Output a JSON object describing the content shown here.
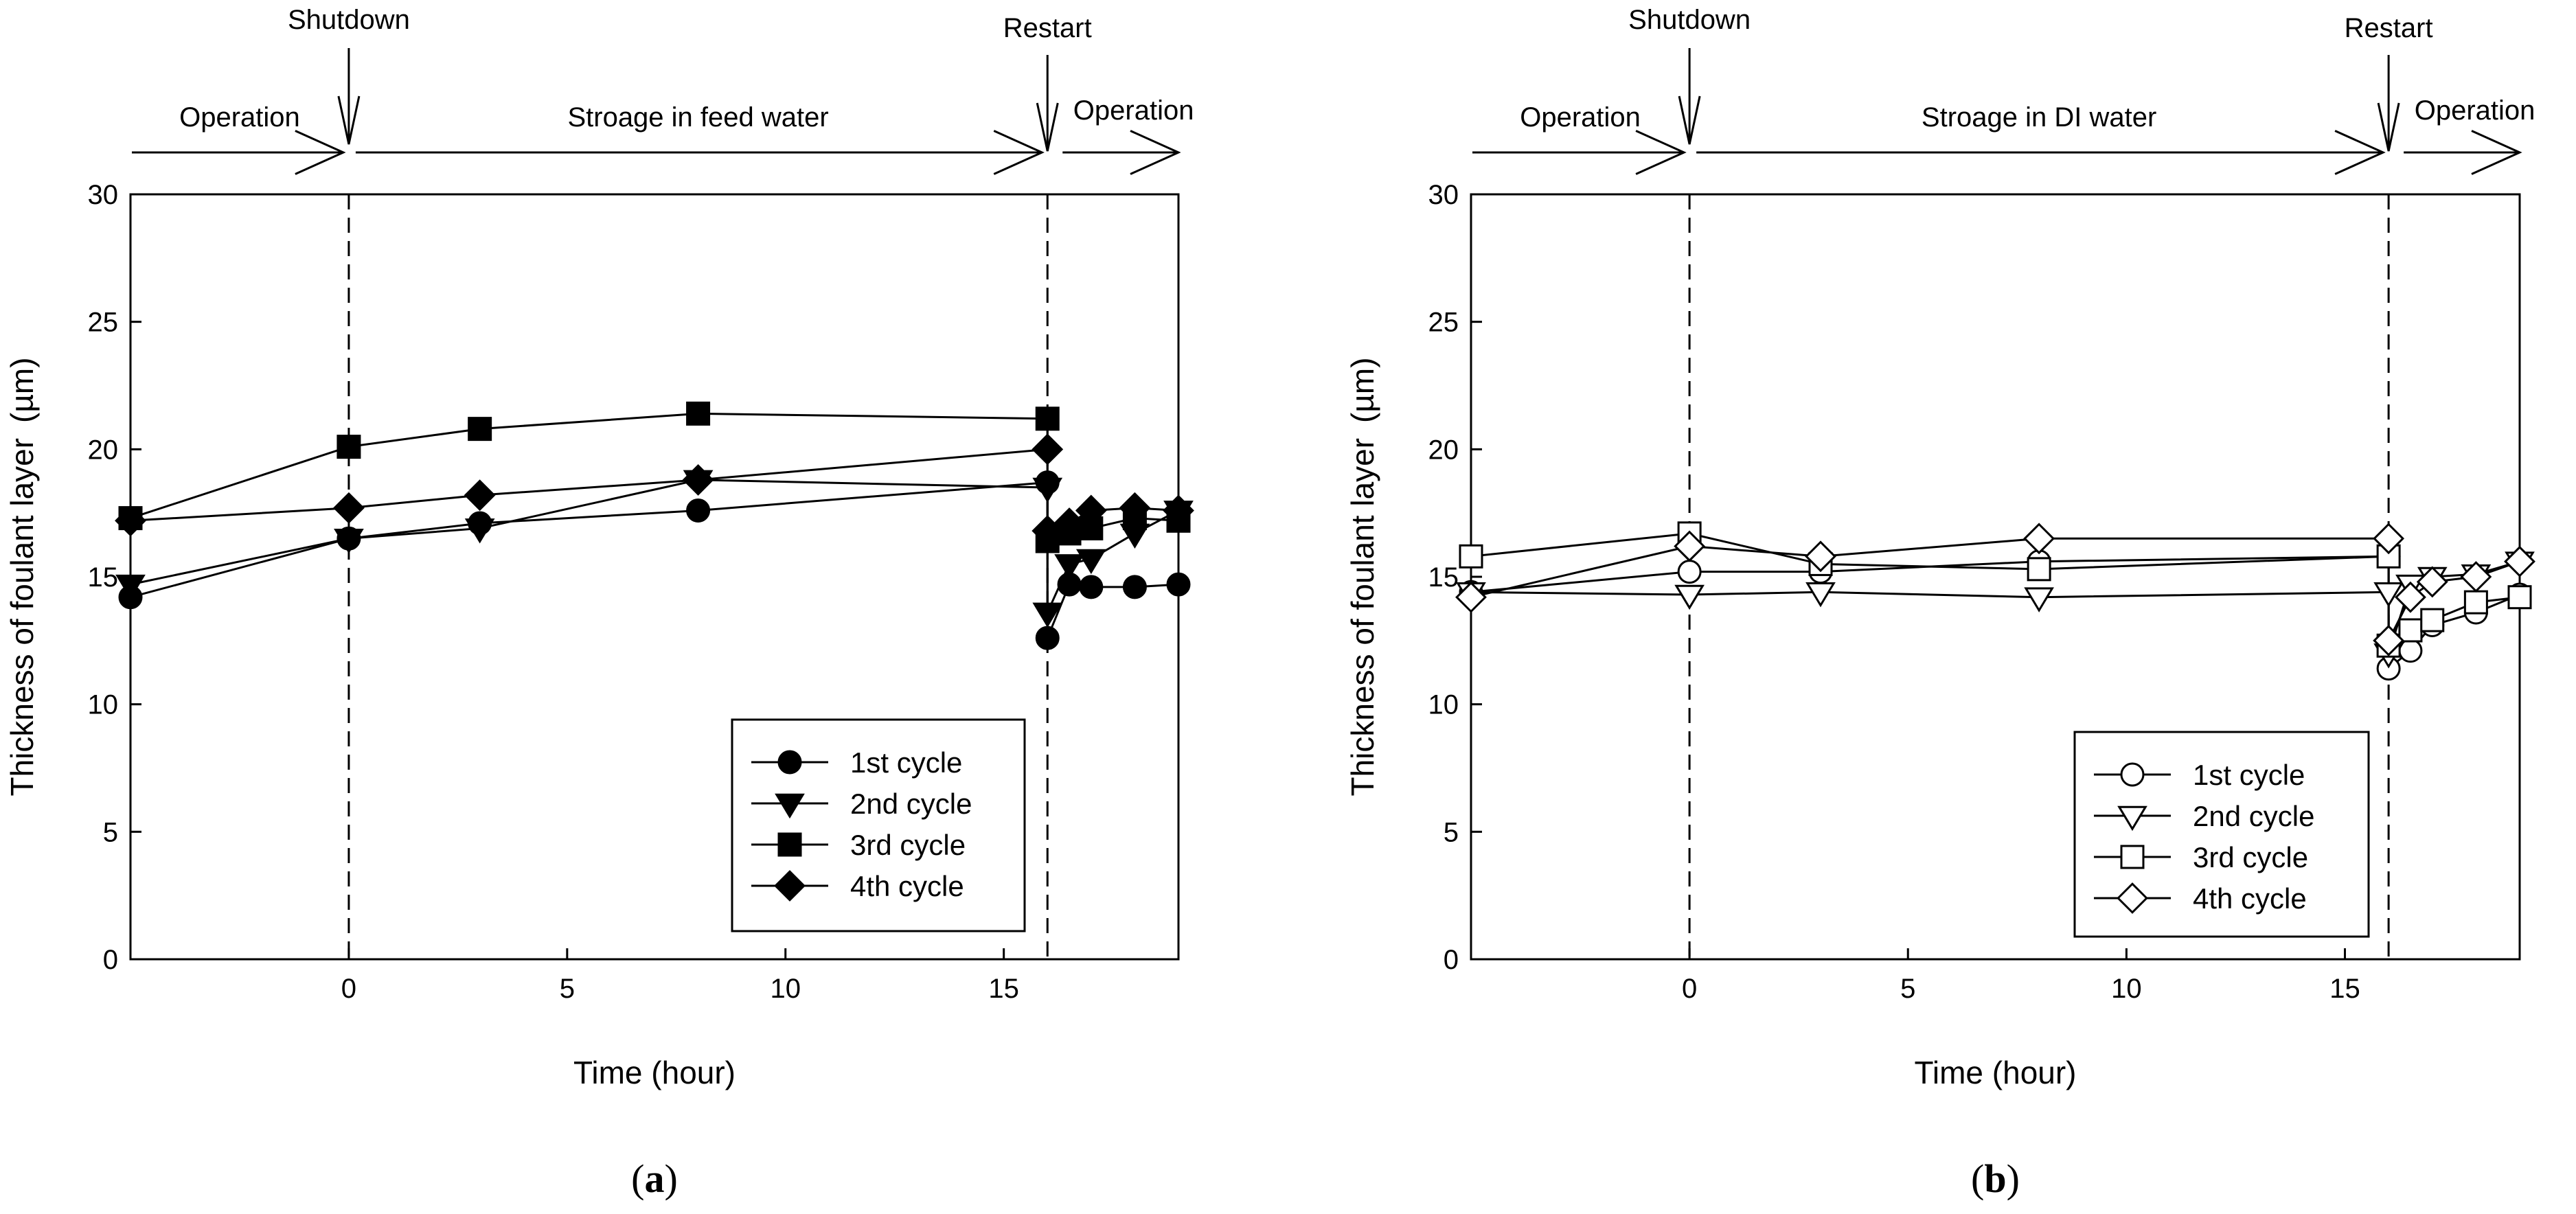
{
  "colors": {
    "ink": "#000000",
    "background": "#ffffff",
    "open_marker_fill": "#ffffff"
  },
  "chart_data": [
    {
      "id": "a",
      "type": "line",
      "caption_letter": "a",
      "caption_open": "(",
      "caption_close": ")",
      "xlabel": "Time (hour)",
      "ylabel": "Thickness of foulant layer",
      "ylabel_unit": "(µm)",
      "xlim": [
        -5,
        19
      ],
      "ylim": [
        0,
        30
      ],
      "xticks": [
        0,
        5,
        10,
        15
      ],
      "yticks": [
        0,
        5,
        10,
        15,
        20,
        25,
        30
      ],
      "grid": false,
      "legend_position": "lower-right",
      "marker_style": "filled",
      "events": {
        "shutdown": {
          "label": "Shutdown",
          "x": 0
        },
        "restart": {
          "label": "Restart",
          "x": 16
        }
      },
      "phases": [
        "Operation",
        "Stroage in feed water",
        "Operation"
      ],
      "series": [
        {
          "name": "1st cycle",
          "marker": "circle",
          "x": [
            -5,
            0,
            3,
            8,
            16,
            16,
            16.5,
            17,
            18,
            19
          ],
          "y": [
            14.2,
            16.5,
            17.1,
            17.6,
            18.7,
            12.6,
            14.7,
            14.6,
            14.6,
            14.7
          ]
        },
        {
          "name": "2nd cycle",
          "marker": "triangle-down",
          "x": [
            -5,
            0,
            3,
            8,
            16,
            16,
            16.5,
            17,
            18,
            19
          ],
          "y": [
            14.7,
            16.5,
            16.9,
            18.8,
            18.5,
            13.6,
            15.5,
            15.7,
            16.7,
            17.6
          ]
        },
        {
          "name": "3rd cycle",
          "marker": "square",
          "x": [
            -5,
            0,
            3,
            8,
            16,
            16,
            16.5,
            17,
            18,
            19
          ],
          "y": [
            17.3,
            20.1,
            20.8,
            21.4,
            21.2,
            16.4,
            16.7,
            16.9,
            17.3,
            17.2
          ]
        },
        {
          "name": "4th cycle",
          "marker": "diamond",
          "x": [
            -5,
            0,
            3,
            8,
            16,
            16,
            16.5,
            17,
            18,
            19
          ],
          "y": [
            17.2,
            17.7,
            18.2,
            18.8,
            20.0,
            16.8,
            17.1,
            17.6,
            17.7,
            17.6
          ]
        }
      ]
    },
    {
      "id": "b",
      "type": "line",
      "caption_letter": "b",
      "caption_open": "(",
      "caption_close": ")",
      "xlabel": "Time (hour)",
      "ylabel": "Thickness of foulant layer",
      "ylabel_unit": "(µm)",
      "xlim": [
        -5,
        19
      ],
      "ylim": [
        0,
        30
      ],
      "xticks": [
        0,
        5,
        10,
        15
      ],
      "yticks": [
        0,
        5,
        10,
        15,
        20,
        25,
        30
      ],
      "grid": false,
      "legend_position": "lower-right",
      "marker_style": "open",
      "events": {
        "shutdown": {
          "label": "Shutdown",
          "x": 0
        },
        "restart": {
          "label": "Restart",
          "x": 16
        }
      },
      "phases": [
        "Operation",
        "Stroage in DI water",
        "Operation"
      ],
      "series": [
        {
          "name": "1st cycle",
          "marker": "circle",
          "x": [
            -5,
            0,
            3,
            8,
            16,
            16,
            16.5,
            17,
            18,
            19
          ],
          "y": [
            14.4,
            15.2,
            15.2,
            15.6,
            15.8,
            11.4,
            12.1,
            13.1,
            13.6,
            14.3
          ]
        },
        {
          "name": "2nd cycle",
          "marker": "triangle-down",
          "x": [
            -5,
            0,
            3,
            8,
            16,
            16,
            16.5,
            17,
            18,
            19
          ],
          "y": [
            14.4,
            14.3,
            14.4,
            14.2,
            14.4,
            12.0,
            14.7,
            15.0,
            15.1,
            15.6
          ]
        },
        {
          "name": "3rd cycle",
          "marker": "square",
          "x": [
            -5,
            0,
            3,
            8,
            16,
            16,
            16.5,
            17,
            18,
            19
          ],
          "y": [
            15.8,
            16.7,
            15.5,
            15.3,
            15.8,
            12.3,
            12.9,
            13.3,
            14.0,
            14.2
          ]
        },
        {
          "name": "4th cycle",
          "marker": "diamond",
          "x": [
            -5,
            0,
            3,
            8,
            16,
            16,
            16.5,
            17,
            18,
            19
          ],
          "y": [
            14.2,
            16.2,
            15.8,
            16.5,
            16.5,
            12.5,
            14.2,
            14.8,
            15.0,
            15.6
          ]
        }
      ]
    }
  ]
}
